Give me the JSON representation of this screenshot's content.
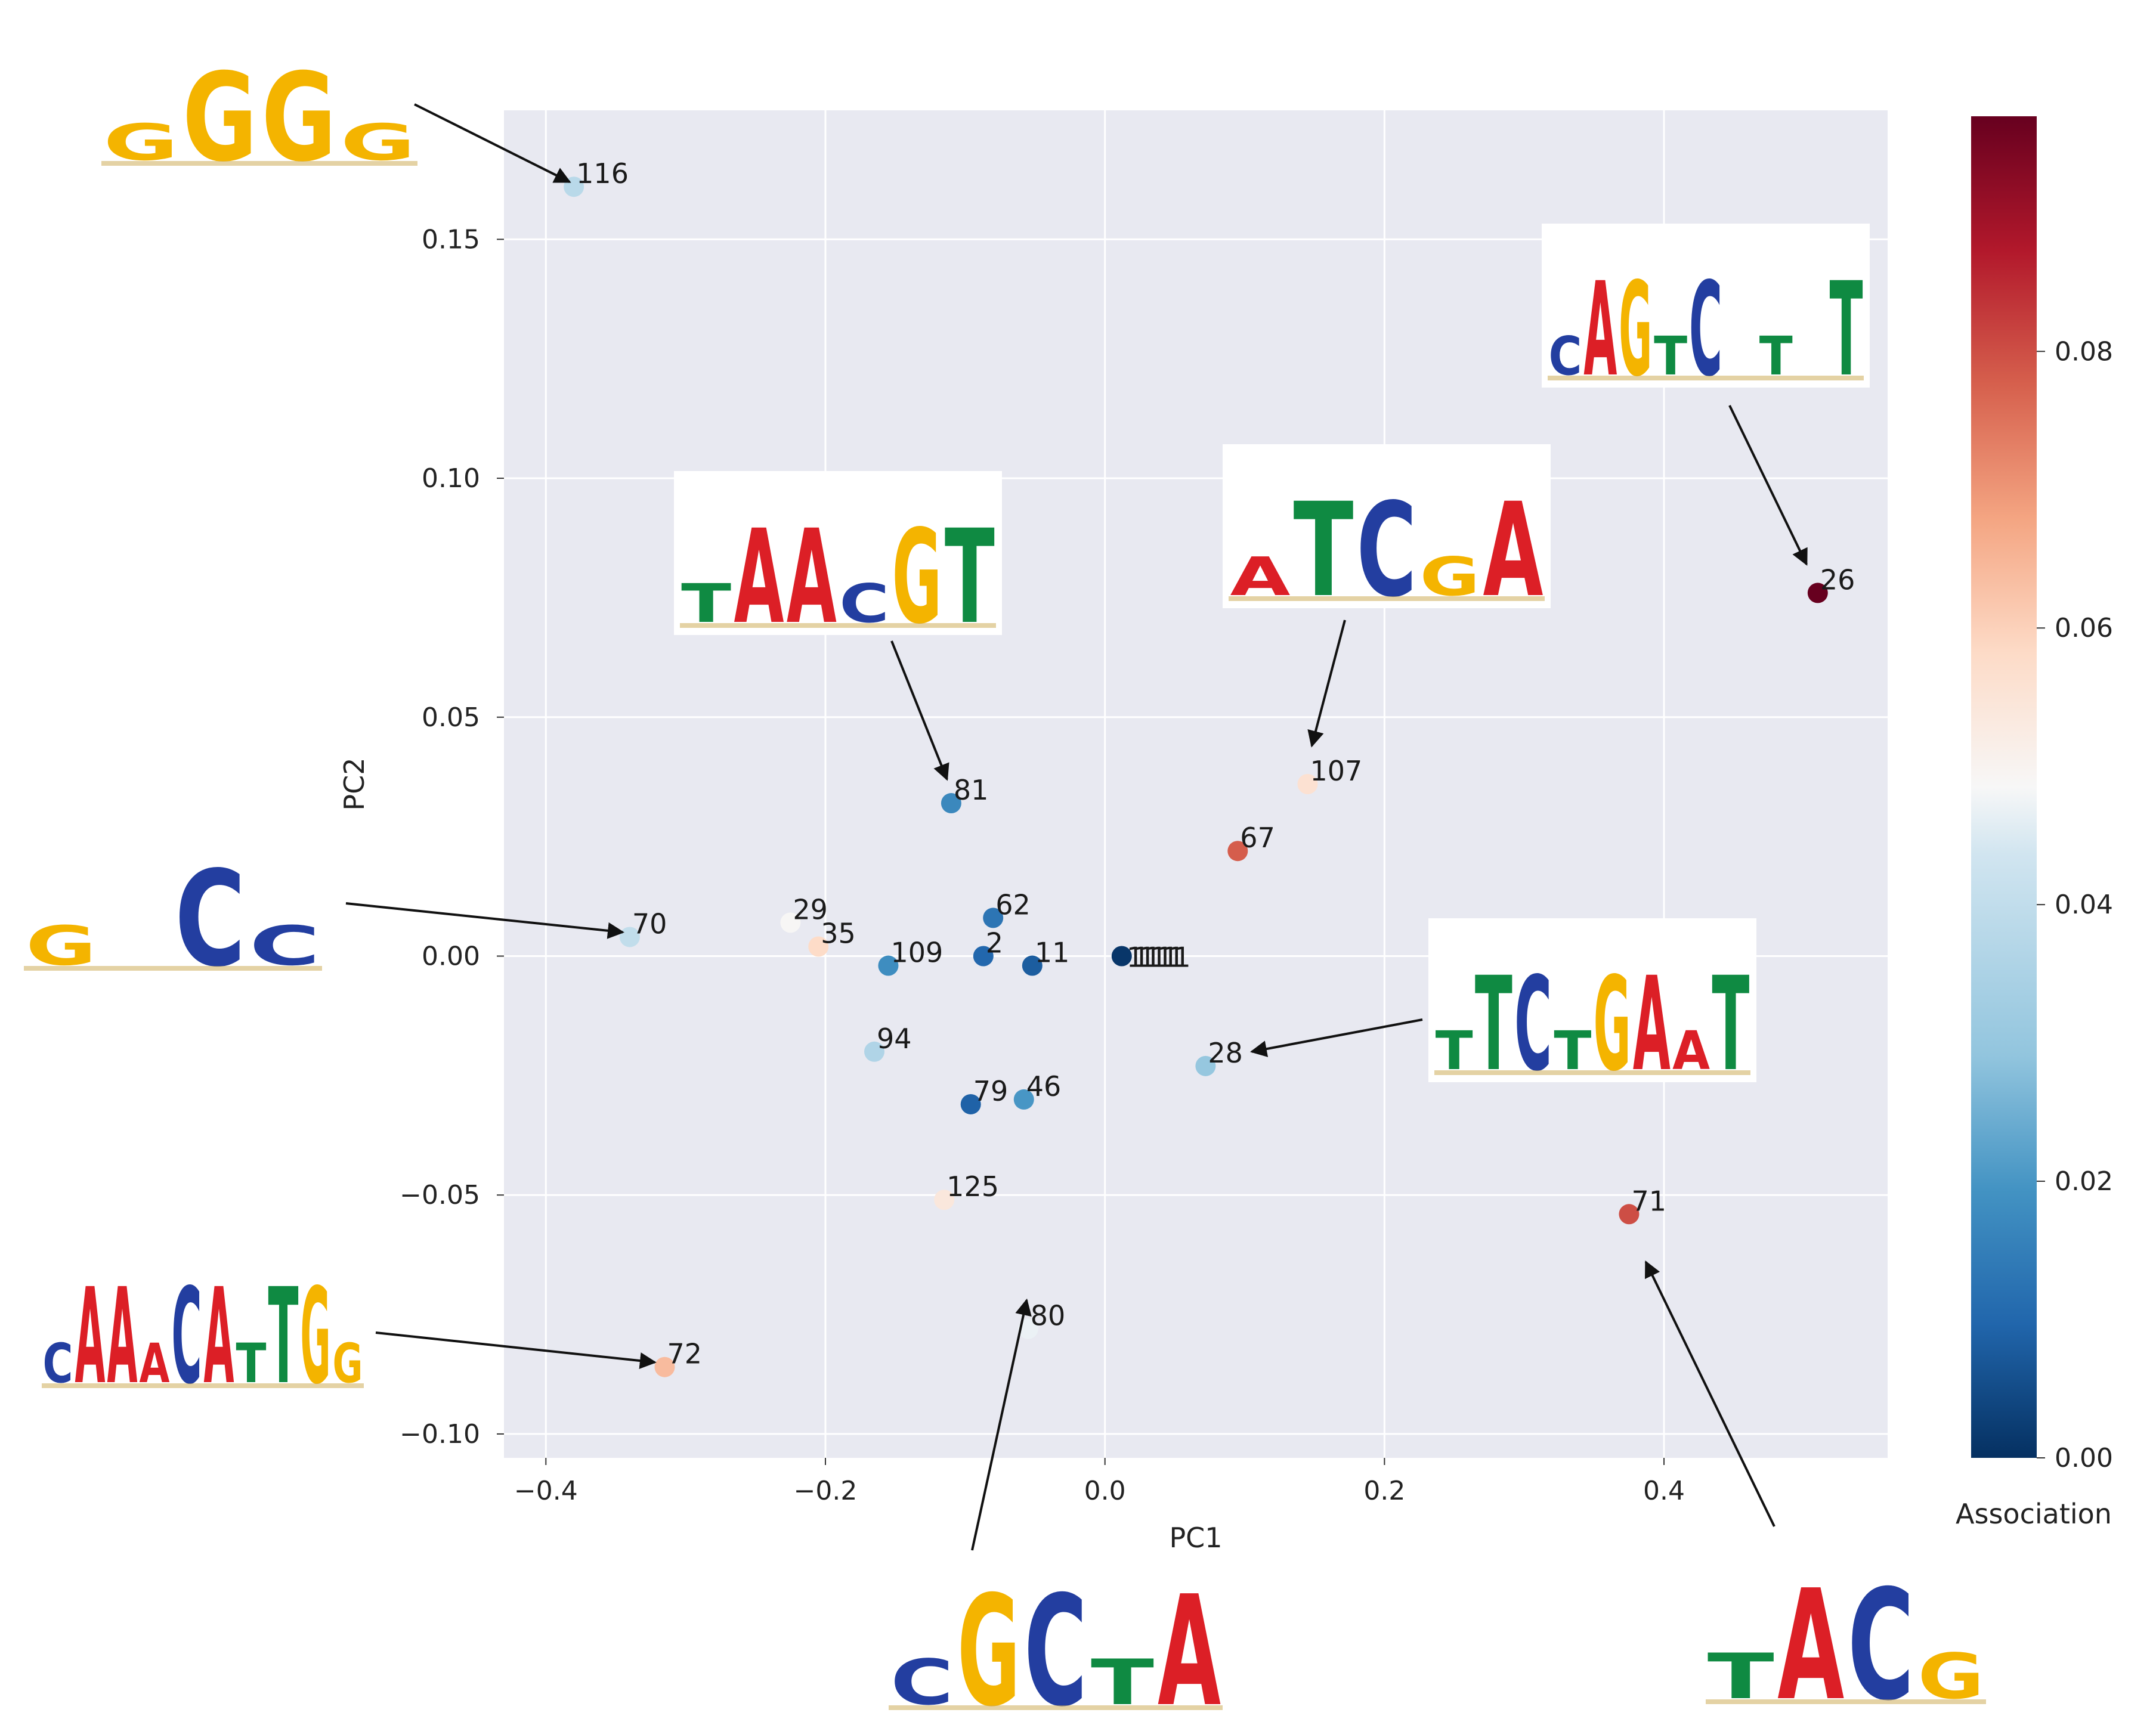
{
  "chart_data": {
    "type": "scatter",
    "xlabel": "PC1",
    "ylabel": "PC2",
    "xlim": [
      -0.43,
      0.56
    ],
    "ylim": [
      -0.105,
      0.177
    ],
    "xticks": [
      -0.4,
      -0.2,
      0.0,
      0.2,
      0.4
    ],
    "xtick_labels": [
      "−0.4",
      "−0.2",
      "0.0",
      "0.2",
      "0.4"
    ],
    "yticks": [
      -0.1,
      -0.05,
      0.0,
      0.05,
      0.1,
      0.15
    ],
    "ytick_labels": [
      "−0.10",
      "−0.05",
      "0.00",
      "0.05",
      "0.10",
      "0.15"
    ],
    "grid": true,
    "colorbar": {
      "label": "Association",
      "range": [
        0.0,
        0.097
      ],
      "ticks": [
        0.0,
        0.02,
        0.04,
        0.06,
        0.08
      ],
      "tick_labels": [
        "0.00",
        "0.02",
        "0.04",
        "0.06",
        "0.08"
      ],
      "colormap": "RdBu_r"
    },
    "points": [
      {
        "label": "116",
        "x": -0.38,
        "y": 0.161,
        "assoc": 0.038
      },
      {
        "label": "26",
        "x": 0.51,
        "y": 0.076,
        "assoc": 0.097
      },
      {
        "label": "107",
        "x": 0.145,
        "y": 0.036,
        "assoc": 0.056
      },
      {
        "label": "81",
        "x": -0.11,
        "y": 0.032,
        "assoc": 0.017
      },
      {
        "label": "67",
        "x": 0.095,
        "y": 0.022,
        "assoc": 0.078
      },
      {
        "label": "62",
        "x": -0.08,
        "y": 0.008,
        "assoc": 0.013
      },
      {
        "label": "70",
        "x": -0.34,
        "y": 0.004,
        "assoc": 0.04
      },
      {
        "label": "29",
        "x": -0.225,
        "y": 0.007,
        "assoc": 0.049
      },
      {
        "label": "35",
        "x": -0.205,
        "y": 0.002,
        "assoc": 0.058
      },
      {
        "label": "109",
        "x": -0.155,
        "y": -0.002,
        "assoc": 0.018
      },
      {
        "label": "2",
        "x": -0.087,
        "y": 0.0,
        "assoc": 0.01
      },
      {
        "label": "11",
        "x": -0.052,
        "y": -0.002,
        "assoc": 0.008
      },
      {
        "label": "",
        "x": 0.012,
        "y": 0.0,
        "assoc": 0.001
      },
      {
        "label": "28",
        "x": 0.072,
        "y": -0.023,
        "assoc": 0.03
      },
      {
        "label": "94",
        "x": -0.165,
        "y": -0.02,
        "assoc": 0.036
      },
      {
        "label": "79",
        "x": -0.096,
        "y": -0.031,
        "assoc": 0.009
      },
      {
        "label": "46",
        "x": -0.058,
        "y": -0.03,
        "assoc": 0.02
      },
      {
        "label": "125",
        "x": -0.115,
        "y": -0.051,
        "assoc": 0.054
      },
      {
        "label": "71",
        "x": 0.375,
        "y": -0.054,
        "assoc": 0.08
      },
      {
        "label": "80",
        "x": -0.055,
        "y": -0.078,
        "assoc": 0.047
      },
      {
        "label": "72",
        "x": -0.315,
        "y": -0.086,
        "assoc": 0.064
      }
    ],
    "cluster_label": "111",
    "motif_logos": [
      {
        "target": "116",
        "letters": "GGGG"
      },
      {
        "target": "81",
        "letters": "TAACGT"
      },
      {
        "target": "107",
        "letters": "ATCGA"
      },
      {
        "target": "26",
        "letters": "CAGTC T T"
      },
      {
        "target": "70",
        "letters": "G CC"
      },
      {
        "target": "28",
        "letters": "TTCTGAAT"
      },
      {
        "target": "72",
        "letters": "CAAACATTGG"
      },
      {
        "target": "80",
        "letters": "CGCTA"
      },
      {
        "target": "71",
        "letters": "TACG"
      }
    ]
  }
}
